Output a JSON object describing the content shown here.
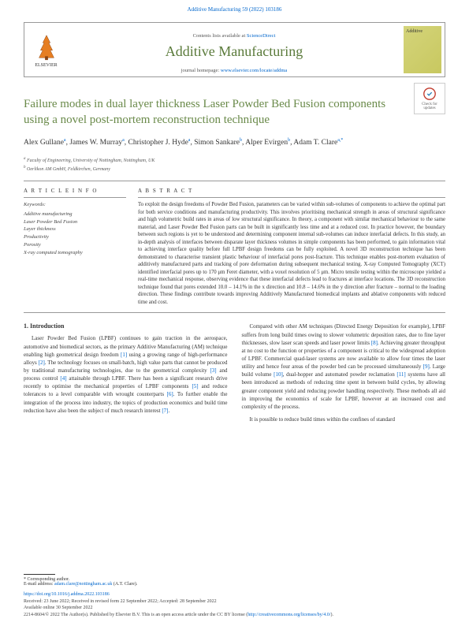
{
  "header_ref": "Additive Manufacturing 59 (2022) 103186",
  "contents_prefix": "Contents lists available at ",
  "contents_link": "ScienceDirect",
  "journal_name": "Additive Manufacturing",
  "homepage_prefix": "journal homepage: ",
  "homepage_link": "www.elsevier.com/locate/addma",
  "publisher": "ELSEVIER",
  "cover_label": "Additive",
  "updates_label": "Check for updates",
  "title": "Failure modes in dual layer thickness Laser Powder Bed Fusion components using a novel post-mortem reconstruction technique",
  "authors_html": "Alex Gullane<sup>a</sup>, James W. Murray<sup>a</sup>, Christopher J. Hyde<sup>a</sup>, Simon Sankare<sup>b</sup>, Alper Evirgen<sup>b</sup>, Adam T. Clare<sup>a,*</sup>",
  "affiliations": {
    "a": "Faculty of Engineering, University of Nottingham, Nottingham, UK",
    "b": "Oerlikon AM GmbH, Feldkirchen, Germany"
  },
  "article_info_label": "A R T I C L E  I N F O",
  "abstract_label": "A B S T R A C T",
  "keywords_title": "Keywords:",
  "keywords": [
    "Additive manufacturing",
    "Laser Powder Bed Fusion",
    "Layer thickness",
    "Productivity",
    "Porosity",
    "X-ray computed tomography"
  ],
  "abstract": "To exploit the design freedoms of Powder Bed Fusion, parameters can be varied within sub-volumes of components to achieve the optimal part for both service conditions and manufacturing productivity. This involves prioritising mechanical strength in areas of structural significance and high volumetric build rates in areas of low structural significance. In theory, a component with similar mechanical behaviour to the same material, and Laser Powder Bed Fusion parts can be built in significantly less time and at a reduced cost. In practice however, the boundary between such regions is yet to be understood and determining component internal sub-volumes can induce interfacial defects. In this study, an in-depth analysis of interfaces between disparate layer thickness volumes in simple components has been performed, to gain information vital to achieving interface quality before full LPBF design freedoms can be fully exploited. A novel 3D reconstruction technique has been demonstrated to characterise transient plastic behaviour of interfacial pores post-fracture. This technique enables post-mortem evaluation of additively manufactured parts and tracking of pore deformation during subsequent mechanical testing. X-ray Computed Tomography (XCT) identified interfacial pores up to 170 μm Feret diameter, with a voxel resolution of 5 μm. Micro tensile testing within the microscope yielded a real-time mechanical response, observing evidence that these interfacial defects lead to fractures at interface locations. The 3D reconstruction technique found that pores extended 10.0 – 14.1% in the x direction and 10.8 – 14.6% in the y direction after fracture – normal to the loading direction. These findings contribute towards improving Additively Manufactured biomedical implants and ablative components with reduced time and cost.",
  "intro_heading": "1. Introduction",
  "intro_p1": "Laser Powder Bed Fusion (LPBF) continues to gain traction in the aerospace, automotive and biomedical sectors, as the primary Additive Manufacturing (AM) technique enabling high geometrical design freedom [1] using a growing range of high-performance alloys [2]. The technology focuses on small-batch, high value parts that cannot be produced by traditional manufacturing technologies, due to the geometrical complexity [3] and process control [4] attainable through LPBF. There has been a significant research drive recently to optimise the mechanical properties of LPBF components [5] and reduce tolerances to a level comparable with wrought counterparts [6]. To further enable the integration of the process into industry, the topics of production economics and build time reduction have also been the subject of much research interest [7].",
  "intro_p2": "Compared with other AM techniques (Directed Energy Deposition for example), LPBF suffers from long build times owing to slower volumetric deposition rates, due to fine layer thicknesses, slow laser scan speeds and laser power limits [8]. Achieving greater throughput at no cost to the function or properties of a component is critical to the widespread adoption of LPBF. Commercial quad-laser systems are now available to allow four times the laser utility and hence four areas of the powder bed can be processed simultaneously [9]. Large build volume [10], dual-hopper and automated powder reclamation [11] systems have all been introduced as methods of reducing time spent in between build cycles, by allowing greater component yield and reducing powder handling respectively. These methods all aid in improving the economics of scale for LPBF, however at an increased cost and complexity of the process.",
  "intro_p3": "It is possible to reduce build times within the confines of standard",
  "corresponding_label": "* Corresponding author.",
  "email_label": "E-mail address: ",
  "email": "adam.clare@nottingham.ac.uk",
  "email_suffix": " (A.T. Clare).",
  "doi": "https://doi.org/10.1016/j.addma.2022.103186",
  "received": "Received: 23 June 2022; Received in revised form 22 September 2022; Accepted: 28 September 2022",
  "available": "Available online 30 September 2022",
  "copyright": "2214-8604/© 2022 The Author(s). Published by Elsevier B.V. This is an open access article under the CC BY license (",
  "license_link": "http://creativecommons.org/licenses/by/4.0/",
  "copyright_suffix": ")."
}
